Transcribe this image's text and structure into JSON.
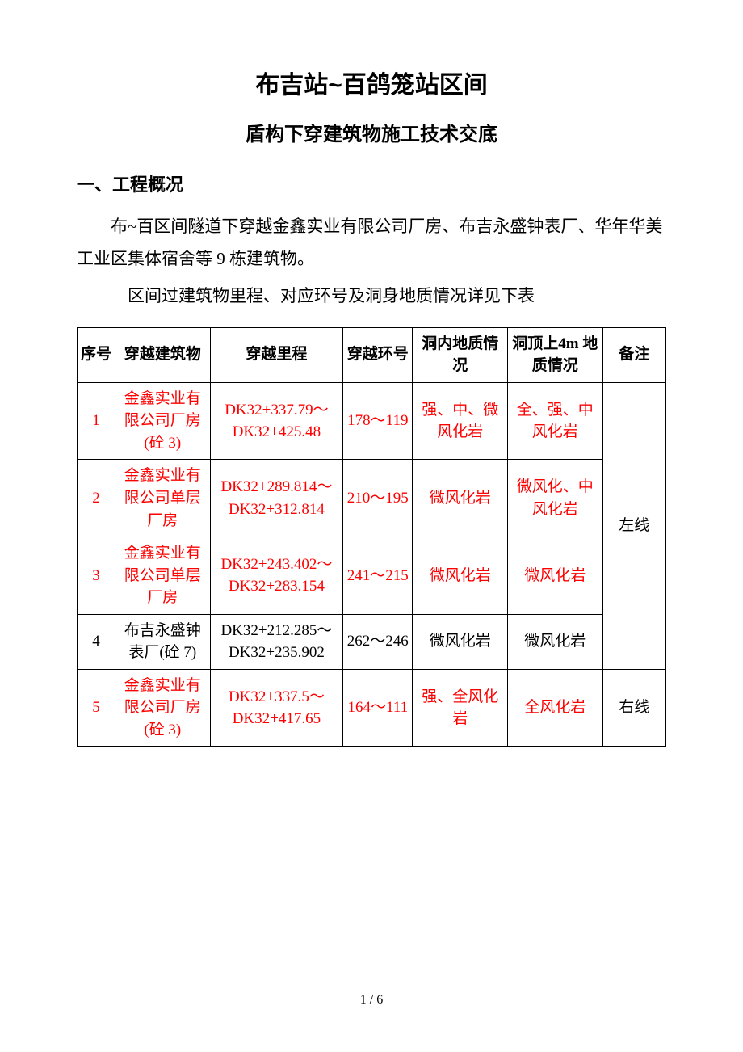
{
  "title_main": "布吉站~百鸽笼站区间",
  "title_sub": "盾构下穿建筑物施工技术交底",
  "section_heading": "一、工程概况",
  "paragraph_1": "布~百区间隧道下穿越金鑫实业有限公司厂房、布吉永盛钟表厂、华年华美工业区集体宿舍等 9 栋建筑物。",
  "paragraph_2": "区间过建筑物里程、对应环号及洞身地质情况详见下表",
  "page_footer": "1 / 6",
  "table": {
    "headers": [
      "序号",
      "穿越建筑物",
      "穿越里程",
      "穿越环号",
      "洞内地质情况",
      "洞顶上4m 地质情况",
      "备注"
    ],
    "rows": [
      {
        "seq": "1",
        "building": "金鑫实业有限公司厂房(砼 3)",
        "mileage": "DK32+337.79～DK32+425.48",
        "ring": "178～119",
        "geo_inside": "强、中、微风化岩",
        "geo_top": "全、强、中风化岩",
        "remark": "左线",
        "red": true
      },
      {
        "seq": "2",
        "building": "金鑫实业有限公司单层厂房",
        "mileage": "DK32+289.814～DK32+312.814",
        "ring": "210～195",
        "geo_inside": "微风化岩",
        "geo_top": "微风化、中风化岩",
        "red": true
      },
      {
        "seq": "3",
        "building": "金鑫实业有限公司单层厂房",
        "mileage": "DK32+243.402～DK32+283.154",
        "ring": "241～215",
        "geo_inside": "微风化岩",
        "geo_top": "微风化岩",
        "red": true
      },
      {
        "seq": "4",
        "building": "布吉永盛钟表厂(砼 7)",
        "mileage": "DK32+212.285～DK32+235.902",
        "ring": "262～246",
        "geo_inside": "微风化岩",
        "geo_top": "微风化岩",
        "red": false
      },
      {
        "seq": "5",
        "building": "金鑫实业有限公司厂房(砼 3)",
        "mileage": "DK32+337.5～DK32+417.65",
        "ring": "164～111",
        "geo_inside": "强、全风化岩",
        "geo_top": "全风化岩",
        "remark": "右线",
        "red": true
      }
    ]
  }
}
